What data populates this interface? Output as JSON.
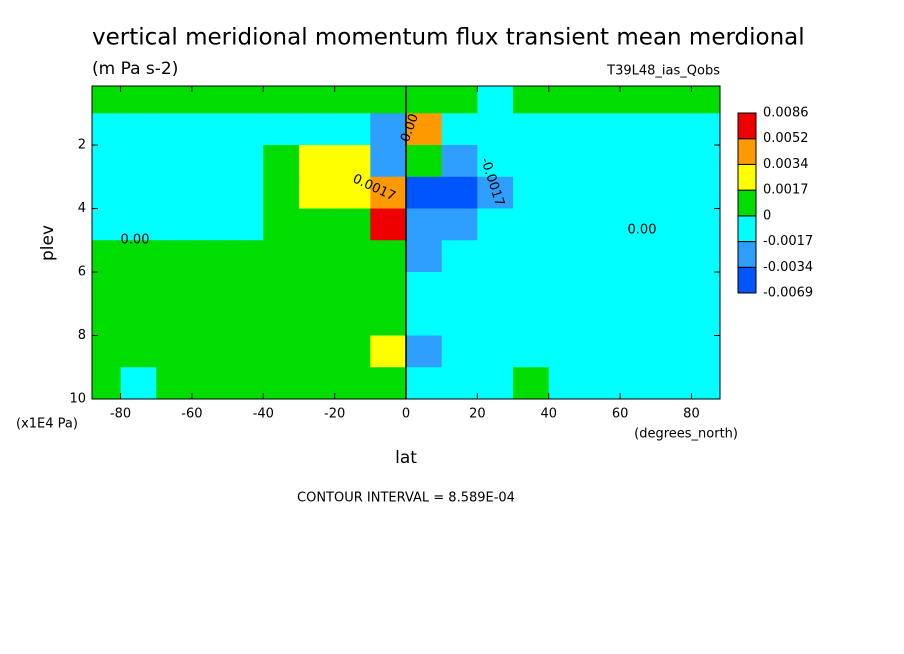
{
  "chart_data": {
    "type": "contour",
    "title": "vertical meridional momentum flux transient mean merdional",
    "subtitle": "(m Pa s-2)",
    "run_label": "T39L48_ias_Qobs",
    "xlabel": "lat",
    "ylabel": "plev",
    "x_units": "(degrees_north)",
    "y_units": "(x1E4 Pa)",
    "footnote": "CONTOUR INTERVAL = 8.589E-04",
    "x": [
      -85,
      -75,
      -65,
      -55,
      -45,
      -35,
      -25,
      -15,
      -5,
      5,
      15,
      25,
      35,
      45,
      55,
      65,
      75,
      85
    ],
    "y": [
      0.5,
      1.5,
      2.5,
      3.5,
      4.5,
      5.5,
      6.5,
      7.5,
      8.5,
      9.5
    ],
    "z": [
      [
        0.0008,
        0.0008,
        0.0008,
        0.0008,
        0.0008,
        0.0008,
        0.0008,
        0.0008,
        0.0008,
        0.0008,
        0.0008,
        -0.0008,
        0.0008,
        0.0008,
        0.0008,
        0.0008,
        0.0008,
        0.0008
      ],
      [
        -0.0008,
        -0.0008,
        -0.0008,
        -0.0008,
        -0.0008,
        -0.0008,
        -0.0008,
        -0.0008,
        -0.0025,
        0.004,
        -0.0008,
        -0.0008,
        -0.0008,
        -0.0008,
        -0.0008,
        -0.0008,
        -0.0008,
        -0.0008
      ],
      [
        -0.0008,
        -0.0008,
        -0.0008,
        -0.0008,
        -0.0008,
        0.0008,
        0.0025,
        0.0025,
        -0.0025,
        0.0008,
        -0.0025,
        -0.0008,
        -0.0008,
        -0.0008,
        -0.0008,
        -0.0008,
        -0.0008,
        -0.0008
      ],
      [
        -0.0008,
        -0.0008,
        -0.0008,
        -0.0008,
        -0.0008,
        0.0008,
        0.0025,
        0.0025,
        0.004,
        -0.004,
        -0.004,
        -0.0025,
        -0.0008,
        -0.0008,
        -0.0008,
        -0.0008,
        -0.0008,
        -0.0008
      ],
      [
        -0.0008,
        -0.0008,
        -0.0008,
        -0.0008,
        -0.0008,
        0.0008,
        0.0008,
        0.0008,
        0.006,
        -0.0025,
        -0.0025,
        -0.0008,
        -0.0008,
        -0.0008,
        -0.0008,
        -0.0008,
        -0.0008,
        -0.0008
      ],
      [
        0.0008,
        0.0008,
        0.0008,
        0.0008,
        0.0008,
        0.0008,
        0.0008,
        0.0008,
        0.0008,
        -0.0025,
        -0.0008,
        -0.0008,
        -0.0008,
        -0.0008,
        -0.0008,
        -0.0008,
        -0.0008,
        -0.0008
      ],
      [
        0.0008,
        0.0008,
        0.0008,
        0.0008,
        0.0008,
        0.0008,
        0.0008,
        0.0008,
        0.0008,
        -0.0008,
        -0.0008,
        -0.0008,
        -0.0008,
        -0.0008,
        -0.0008,
        -0.0008,
        -0.0008,
        -0.0008
      ],
      [
        0.0008,
        0.0008,
        0.0008,
        0.0008,
        0.0008,
        0.0008,
        0.0008,
        0.0008,
        0.0008,
        -0.0008,
        -0.0008,
        -0.0008,
        -0.0008,
        -0.0008,
        -0.0008,
        -0.0008,
        -0.0008,
        -0.0008
      ],
      [
        0.0008,
        0.0008,
        0.0008,
        0.0008,
        0.0008,
        0.0008,
        0.0008,
        0.0008,
        0.0025,
        -0.0025,
        -0.0008,
        -0.0008,
        -0.0008,
        -0.0008,
        -0.0008,
        -0.0008,
        -0.0008,
        -0.0008
      ],
      [
        0.0008,
        -0.0008,
        0.0008,
        0.0008,
        0.0008,
        0.0008,
        0.0008,
        0.0008,
        0.0008,
        -0.0008,
        -0.0008,
        -0.0008,
        0.0008,
        -0.0008,
        -0.0008,
        -0.0008,
        -0.0008,
        -0.0008
      ]
    ],
    "levels": [
      -0.0069,
      -0.0034,
      -0.0017,
      0,
      0.0017,
      0.0034,
      0.0052,
      0.0086
    ],
    "colors": [
      "#0055ff",
      "#2f9fff",
      "#00ffff",
      "#00dd00",
      "#ffff00",
      "#ff9900",
      "#ee0000"
    ],
    "contour_labels": [
      "0.00",
      "0.00",
      "-0.0017",
      "0.0017",
      "0.00"
    ],
    "xlim": [
      -88,
      88
    ],
    "ylim": [
      0.14,
      10
    ],
    "y_inverted": true,
    "xticks": [
      -80,
      -60,
      -40,
      -20,
      0,
      20,
      40,
      60,
      80
    ],
    "yticks": [
      2,
      4,
      6,
      8,
      10
    ]
  }
}
